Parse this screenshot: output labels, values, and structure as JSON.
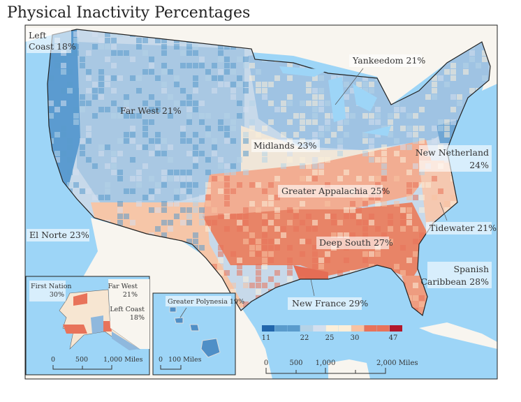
{
  "title": "Physical Inactivity Percentages",
  "regions": {
    "left_coast": [
      "Left",
      "Coast 18%"
    ],
    "far_west": "Far West 21%",
    "yankeedom": "Yankeedom 21%",
    "midlands": "Midlands 23%",
    "new_netherland": [
      "New Netherland",
      "24%"
    ],
    "greater_appalachia": "Greater Appalachia 25%",
    "el_norte": "El Norte 23%",
    "tidewater": "Tidewater 21%",
    "deep_south": "Deep South 27%",
    "spanish_caribbean": [
      "Spanish",
      "Caribbean 28%"
    ],
    "new_france": "New France 29%"
  },
  "alaska_inset": {
    "first_nation": [
      "First Nation",
      "30%"
    ],
    "far_west": [
      "Far West",
      "21%"
    ],
    "left_coast": [
      "Left Coast",
      "18%"
    ],
    "scale": [
      "0",
      "500",
      "1,000 Miles"
    ]
  },
  "hawaii_inset": {
    "greater_polynesia": "Greater Polynesia 19%",
    "scale": [
      "0",
      "100 Miles"
    ]
  },
  "legend": {
    "colors": [
      "#2166ac",
      "#5a9bcc",
      "#5a9bcc",
      "#b5d3e7",
      "#d3dfee",
      "#fcefd9",
      "#fcefd9",
      "#f8c2a2",
      "#e8735a",
      "#e8735a",
      "#b2182b"
    ],
    "labels": [
      "11",
      "22",
      "25",
      "30",
      "47"
    ]
  },
  "scale_bar": [
    "0",
    "500",
    "1,000",
    "2,000 Miles"
  ],
  "colors": {
    "ocean": "#9dd5f7",
    "land": "#f8f5ef",
    "border": "#222222"
  }
}
